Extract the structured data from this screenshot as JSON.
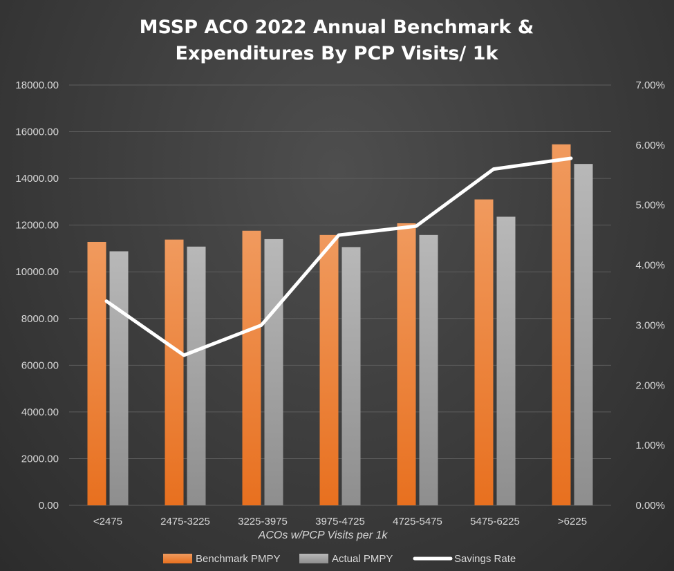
{
  "chart_data": {
    "type": "bar",
    "title_line1": "MSSP ACO 2022 Annual Benchmark &",
    "title_line2": "Expenditures By PCP Visits/ 1k",
    "xlabel": "ACOs w/PCP Visits per 1k",
    "categories": [
      "<2475",
      "2475-3225",
      "3225-3975",
      "3975-4725",
      "4725-5475",
      "5475-6225",
      ">6225"
    ],
    "series": [
      {
        "name": "Benchmark PMPY",
        "kind": "bar",
        "axis": "left",
        "color": "#ed7d31",
        "values": [
          11280,
          11380,
          11760,
          11580,
          12080,
          13100,
          15460
        ]
      },
      {
        "name": "Actual PMPY",
        "kind": "bar",
        "axis": "left",
        "color": "#a5a5a5",
        "values": [
          10880,
          11080,
          11400,
          11060,
          11580,
          12360,
          14620
        ]
      },
      {
        "name": "Savings Rate",
        "kind": "line",
        "axis": "right",
        "color": "#ffffff",
        "values": [
          0.034,
          0.025,
          0.03,
          0.045,
          0.0465,
          0.056,
          0.0578
        ]
      }
    ],
    "y_left": {
      "min": 0,
      "max": 18000,
      "step": 2000,
      "tick_labels": [
        "0.00",
        "2000.00",
        "4000.00",
        "6000.00",
        "8000.00",
        "10000.00",
        "12000.00",
        "14000.00",
        "16000.00",
        "18000.00"
      ]
    },
    "y_right": {
      "min": 0,
      "max": 0.07,
      "step": 0.01,
      "tick_labels": [
        "0.00%",
        "1.00%",
        "2.00%",
        "3.00%",
        "4.00%",
        "5.00%",
        "6.00%",
        "7.00%"
      ]
    },
    "grid": true,
    "legend_position": "bottom"
  }
}
